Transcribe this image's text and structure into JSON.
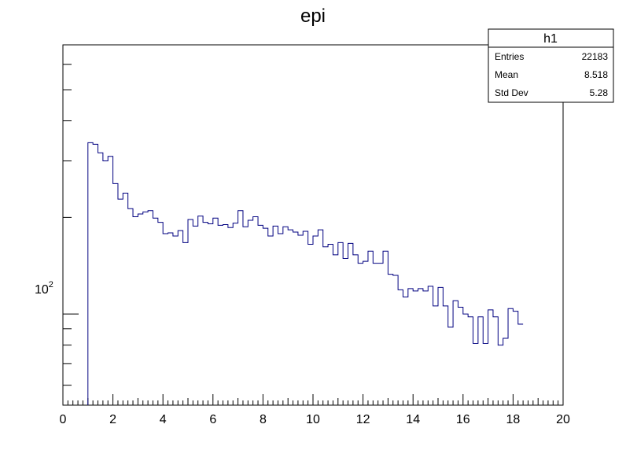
{
  "chart_data": {
    "type": "histogram",
    "title": "epi",
    "xlabel": "",
    "ylabel": "",
    "xlim": [
      0,
      20
    ],
    "ylim": [
      52,
      690
    ],
    "ylog": true,
    "xticks": [
      0,
      2,
      4,
      6,
      8,
      10,
      12,
      14,
      16,
      18,
      20
    ],
    "ytick_label": {
      "base": "10",
      "exp": "2",
      "value": 100
    },
    "line_color": "#000080",
    "series": [
      {
        "bin_width": 0.2,
        "x_start": 1.0,
        "values": [
          342,
          338,
          318,
          300,
          310,
          255,
          228,
          238,
          213,
          201,
          205,
          208,
          210,
          199,
          193,
          178,
          179,
          175,
          182,
          167,
          197,
          188,
          202,
          193,
          191,
          199,
          189,
          190,
          186,
          192,
          210,
          187,
          196,
          201,
          189,
          185,
          175,
          188,
          178,
          187,
          183,
          180,
          176,
          181,
          165,
          175,
          183,
          162,
          165,
          153,
          167,
          149,
          166,
          153,
          144,
          146,
          157,
          144,
          144,
          157,
          133,
          132,
          119,
          113,
          120,
          118,
          120,
          118,
          122,
          106,
          121,
          106,
          91,
          110,
          105,
          100,
          98,
          81,
          98,
          81,
          103,
          98,
          80,
          84,
          104,
          102,
          93
        ]
      }
    ]
  },
  "stats_box": {
    "title": "h1",
    "rows": [
      {
        "label": "Entries",
        "value": "22183"
      },
      {
        "label": "Mean",
        "value": "8.518"
      },
      {
        "label": "Std Dev",
        "value": "5.28"
      }
    ]
  }
}
